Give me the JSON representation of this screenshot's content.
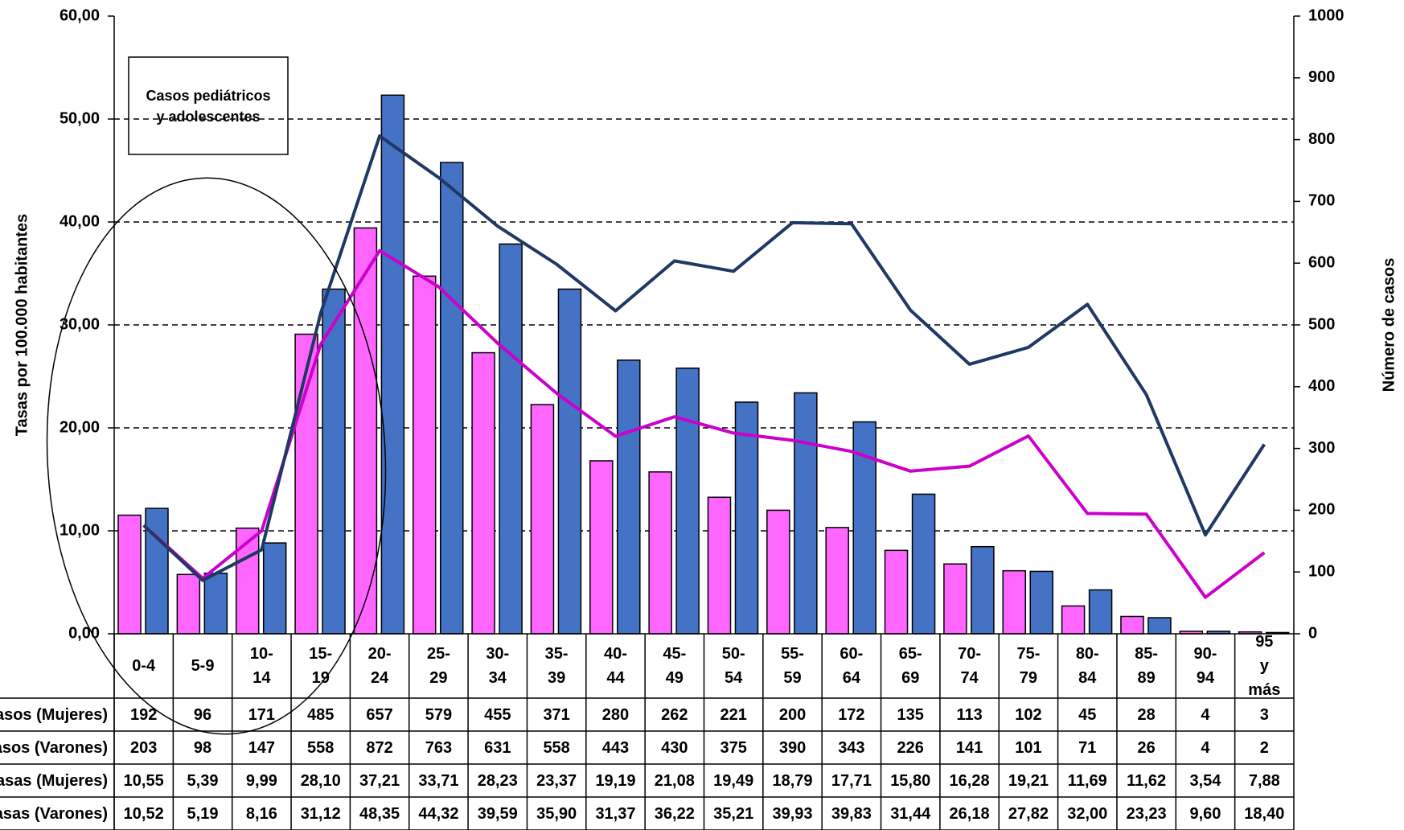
{
  "chart_data": {
    "type": "bar",
    "annotation": "Casos pediátricos y adolescentes",
    "ylabel": "Tasas por 100.000 habitantes",
    "y2label": "Número de casos",
    "categories": [
      "0-4",
      "5-9",
      "10- 14",
      "15- 19",
      "20- 24",
      "25- 29",
      "30- 34",
      "35- 39",
      "40- 44",
      "45- 49",
      "50- 54",
      "55- 59",
      "60- 64",
      "65- 69",
      "70- 74",
      "75- 79",
      "80- 84",
      "85- 89",
      "90- 94",
      "95 y más"
    ],
    "ylim": [
      0,
      60
    ],
    "yticks": [
      {
        "value": 0,
        "label": "0,00"
      },
      {
        "value": 10,
        "label": "10,00"
      },
      {
        "value": 20,
        "label": "20,00"
      },
      {
        "value": 30,
        "label": "30,00"
      },
      {
        "value": 40,
        "label": "40,00"
      },
      {
        "value": 50,
        "label": "50,00"
      },
      {
        "value": 60,
        "label": "60,00"
      }
    ],
    "y2lim": [
      0,
      1000
    ],
    "y2ticks": [
      0,
      100,
      200,
      300,
      400,
      500,
      600,
      700,
      800,
      900,
      1000
    ],
    "grid": true,
    "series": [
      {
        "name": "Casos (Mujeres)",
        "type": "bar",
        "axis": "y2",
        "color": "#ff66ff",
        "values": [
          192,
          96,
          171,
          485,
          657,
          579,
          455,
          371,
          280,
          262,
          221,
          200,
          172,
          135,
          113,
          102,
          45,
          28,
          4,
          3
        ]
      },
      {
        "name": "Casos (Varones)",
        "type": "bar",
        "axis": "y2",
        "color": "#4472c4",
        "values": [
          203,
          98,
          147,
          558,
          872,
          763,
          631,
          558,
          443,
          430,
          375,
          390,
          343,
          226,
          141,
          101,
          71,
          26,
          4,
          2
        ]
      },
      {
        "name": "Tasas (Mujeres)",
        "type": "line",
        "color": "#cc00cc",
        "values": [
          10.55,
          5.39,
          9.99,
          28.1,
          37.21,
          33.71,
          28.23,
          23.37,
          19.19,
          21.08,
          19.49,
          18.79,
          17.71,
          15.8,
          16.28,
          19.21,
          11.69,
          11.62,
          3.54,
          7.88
        ],
        "value_labels": [
          "10,55",
          "5,39",
          "9,99",
          "28,10",
          "37,21",
          "33,71",
          "28,23",
          "23,37",
          "19,19",
          "21,08",
          "19,49",
          "18,79",
          "17,71",
          "15,80",
          "16,28",
          "19,21",
          "11,69",
          "11,62",
          "3,54",
          "7,88"
        ]
      },
      {
        "name": "Tasas (Varones)",
        "type": "line",
        "color": "#1f3864",
        "values": [
          10.52,
          5.19,
          8.16,
          31.12,
          48.35,
          44.32,
          39.59,
          35.9,
          31.37,
          36.22,
          35.21,
          39.93,
          39.83,
          31.44,
          26.18,
          27.82,
          32.0,
          23.23,
          9.6,
          18.4
        ],
        "value_labels": [
          "10,52",
          "5,19",
          "8,16",
          "31,12",
          "48,35",
          "44,32",
          "39,59",
          "35,90",
          "31,37",
          "36,22",
          "35,21",
          "39,93",
          "39,83",
          "31,44",
          "26,18",
          "27,82",
          "32,00",
          "23,23",
          "9,60",
          "18,40"
        ]
      }
    ]
  }
}
